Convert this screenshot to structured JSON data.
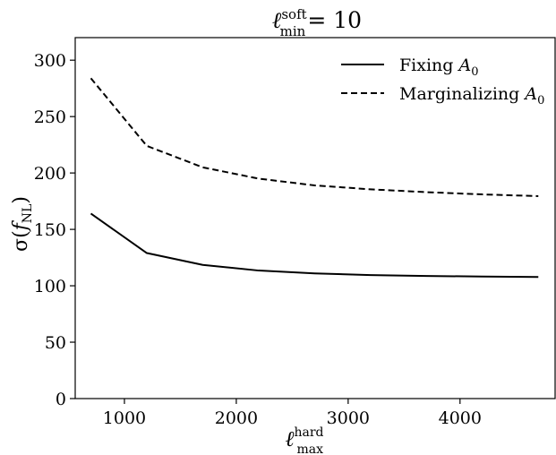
{
  "chart_data": {
    "type": "line",
    "title": {
      "symbol": "ℓ",
      "superscript": "soft",
      "subscript": "min",
      "suffix": "= 10"
    },
    "xlabel": {
      "symbol": "ℓ",
      "superscript": "hard",
      "subscript": "max"
    },
    "ylabel": {
      "prefix": "σ(",
      "symbol": "f",
      "subscript": "NL",
      "suffix": ")"
    },
    "xlim": [
      560,
      4850
    ],
    "ylim": [
      0,
      320
    ],
    "xticks": [
      1000,
      2000,
      3000,
      4000
    ],
    "yticks": [
      0,
      50,
      100,
      150,
      200,
      250,
      300
    ],
    "xtick_labels": [
      "1000",
      "2000",
      "3000",
      "4000"
    ],
    "ytick_labels": [
      "0",
      "50",
      "100",
      "150",
      "200",
      "250",
      "300"
    ],
    "grid": false,
    "legend_position": "top-right",
    "x": [
      700,
      1200,
      1700,
      2200,
      2700,
      3200,
      3700,
      4200,
      4700
    ],
    "series": [
      {
        "name": "Fixing A₀",
        "name_text": "Fixing ",
        "name_symbol": "A",
        "name_subscript": "0",
        "style": "solid",
        "color": "#000000",
        "values": [
          164,
          129,
          118.5,
          113.5,
          111,
          109.5,
          108.7,
          108.2,
          107.8
        ]
      },
      {
        "name": "Marginalizing A₀",
        "name_text": "Marginalizing ",
        "name_symbol": "A",
        "name_subscript": "0",
        "style": "dashed",
        "color": "#000000",
        "values": [
          284,
          224,
          205,
          195,
          189,
          185.5,
          183,
          181,
          179.5
        ]
      }
    ]
  }
}
